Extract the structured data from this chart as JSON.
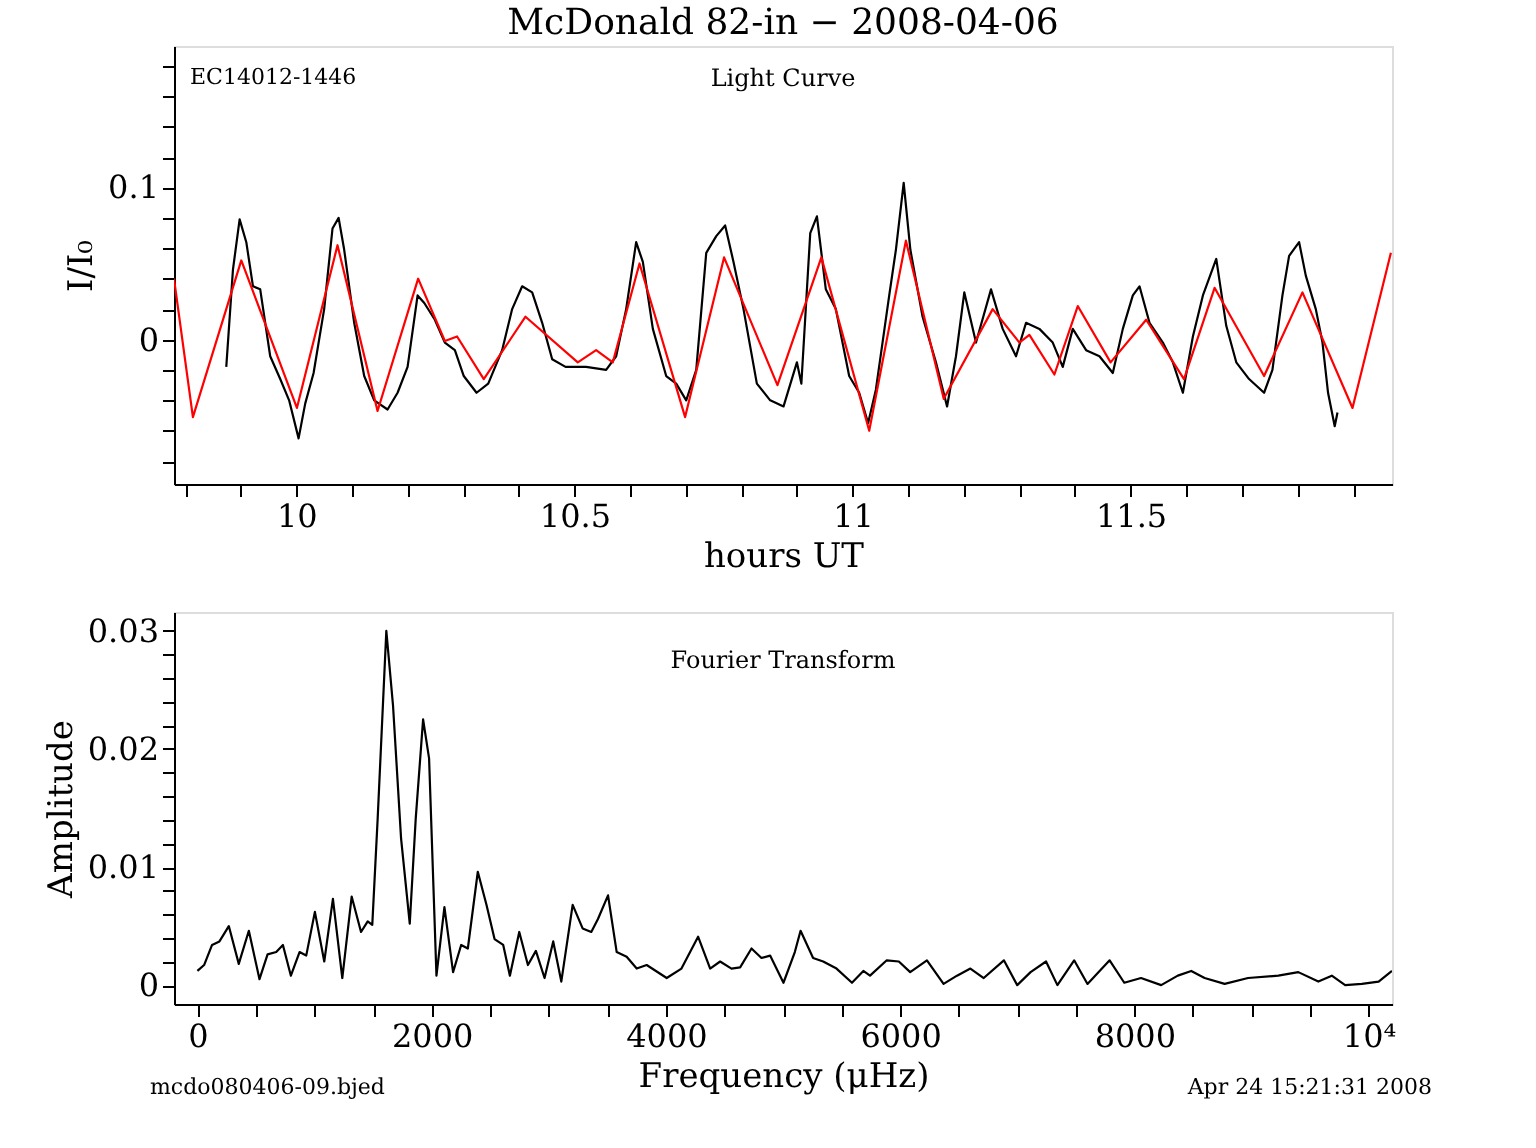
{
  "chart_data": [
    {
      "type": "line",
      "title": "McDonald 82-in − 2008-04-06",
      "xlabel": "hours UT",
      "ylabel": "I/I₀",
      "annotations": [
        "EC14012-1446",
        "Light Curve"
      ],
      "xlim": [
        9.78,
        11.97
      ],
      "ylim": [
        -0.095,
        0.193
      ],
      "xticks": [
        {
          "value": 9.8,
          "label": null
        },
        {
          "value": 9.9,
          "label": null
        },
        10,
        {
          "value": 10.1,
          "label": null
        },
        {
          "value": 10.2,
          "label": null
        },
        {
          "value": 10.3,
          "label": null
        },
        {
          "value": 10.4,
          "label": null
        },
        10.5,
        {
          "value": 10.6,
          "label": null
        },
        {
          "value": 10.7,
          "label": null
        },
        {
          "value": 10.8,
          "label": null
        },
        {
          "value": 10.9,
          "label": null
        },
        11,
        {
          "value": 11.1,
          "label": null
        },
        {
          "value": 11.2,
          "label": null
        },
        {
          "value": 11.3,
          "label": null
        },
        {
          "value": 11.4,
          "label": null
        },
        11.5,
        {
          "value": 11.6,
          "label": null
        },
        {
          "value": 11.7,
          "label": null
        },
        {
          "value": 11.8,
          "label": null
        },
        {
          "value": 11.9,
          "label": null
        }
      ],
      "yticks": [
        {
          "value": -0.08,
          "label": null
        },
        {
          "value": -0.06,
          "label": null
        },
        {
          "value": -0.04,
          "label": null
        },
        {
          "value": -0.02,
          "label": null
        },
        0,
        {
          "value": 0.02,
          "label": null
        },
        {
          "value": 0.04,
          "label": null
        },
        {
          "value": 0.06,
          "label": null
        },
        {
          "value": 0.08,
          "label": null
        },
        0.1,
        {
          "value": 0.12,
          "label": null
        },
        {
          "value": 0.14,
          "label": null
        },
        {
          "value": 0.16,
          "label": null
        },
        {
          "value": 0.18,
          "label": null
        }
      ],
      "series": [
        {
          "color": "#000000",
          "x": [
            9.874,
            9.886,
            9.898,
            9.91,
            9.922,
            9.935,
            9.953,
            9.971,
            9.987,
            10.004,
            10.016,
            10.031,
            10.05,
            10.065,
            10.076,
            10.086,
            10.104,
            10.122,
            10.14,
            10.164,
            10.182,
            10.2,
            10.218,
            10.23,
            10.249,
            10.267,
            10.285,
            10.301,
            10.324,
            10.345,
            10.37,
            10.388,
            10.406,
            10.424,
            10.442,
            10.46,
            10.484,
            10.521,
            10.557,
            10.575,
            10.593,
            10.611,
            10.623,
            10.641,
            10.665,
            10.683,
            10.701,
            10.719,
            10.737,
            10.755,
            10.771,
            10.786,
            10.804,
            10.828,
            10.852,
            10.876,
            10.9,
            10.908,
            10.924,
            10.936,
            10.952,
            10.97,
            10.994,
            11.012,
            11.028,
            11.042,
            11.066,
            11.078,
            11.092,
            11.104,
            11.126,
            11.15,
            11.17,
            11.186,
            11.201,
            11.222,
            11.249,
            11.27,
            11.294,
            11.312,
            11.336,
            11.36,
            11.378,
            11.396,
            11.42,
            11.444,
            11.468,
            11.486,
            11.504,
            11.516,
            11.534,
            11.558,
            11.576,
            11.594,
            11.612,
            11.63,
            11.654,
            11.672,
            11.69,
            11.713,
            11.74,
            11.755,
            11.773,
            11.785,
            11.803,
            11.815,
            11.833,
            11.845,
            11.855,
            11.867,
            11.872
          ],
          "values": [
            -0.018,
            0.046,
            0.079,
            0.064,
            0.035,
            0.033,
            -0.011,
            -0.026,
            -0.04,
            -0.065,
            -0.042,
            -0.022,
            0.02,
            0.073,
            0.08,
            0.059,
            0.011,
            -0.024,
            -0.04,
            -0.046,
            -0.035,
            -0.018,
            0.029,
            0.024,
            0.013,
            -0.002,
            -0.007,
            -0.024,
            -0.035,
            -0.029,
            -0.007,
            0.02,
            0.035,
            0.031,
            0.011,
            -0.013,
            -0.018,
            -0.018,
            -0.02,
            -0.011,
            0.02,
            0.064,
            0.051,
            0.007,
            -0.024,
            -0.029,
            -0.04,
            -0.02,
            0.057,
            0.068,
            0.075,
            0.051,
            0.02,
            -0.029,
            -0.04,
            -0.044,
            -0.015,
            -0.029,
            0.07,
            0.081,
            0.033,
            0.02,
            -0.024,
            -0.035,
            -0.055,
            -0.033,
            0.029,
            0.059,
            0.103,
            0.059,
            0.015,
            -0.015,
            -0.044,
            -0.011,
            0.031,
            -0.002,
            0.033,
            0.007,
            -0.011,
            0.011,
            0.007,
            -0.002,
            -0.018,
            0.007,
            -0.007,
            -0.011,
            -0.022,
            0.007,
            0.029,
            0.035,
            0.011,
            -0.002,
            -0.015,
            -0.035,
            0.002,
            0.029,
            0.053,
            0.009,
            -0.015,
            -0.026,
            -0.035,
            -0.02,
            0.029,
            0.055,
            0.064,
            0.042,
            0.02,
            -0.002,
            -0.035,
            -0.057,
            -0.048
          ]
        },
        {
          "color": "#ff0000",
          "x": [
            9.78,
            9.814,
            9.901,
            10.001,
            10.074,
            10.146,
            10.219,
            10.267,
            10.289,
            10.337,
            10.412,
            10.506,
            10.539,
            10.569,
            10.617,
            10.699,
            10.769,
            10.865,
            10.944,
            11.03,
            11.096,
            11.164,
            11.252,
            11.3,
            11.318,
            11.363,
            11.405,
            11.464,
            11.528,
            11.596,
            11.651,
            11.74,
            11.809,
            11.899,
            11.968
          ],
          "values": [
            0.04,
            -0.051,
            0.052,
            -0.045,
            0.062,
            -0.047,
            0.04,
            -0.001,
            0.002,
            -0.026,
            0.015,
            -0.015,
            -0.007,
            -0.015,
            0.05,
            -0.051,
            0.054,
            -0.03,
            0.054,
            -0.06,
            0.065,
            -0.039,
            0.02,
            -0.002,
            0.003,
            -0.023,
            0.022,
            -0.015,
            0.013,
            -0.026,
            0.034,
            -0.024,
            0.031,
            -0.045,
            0.057
          ]
        }
      ]
    },
    {
      "type": "line",
      "xlabel": "Frequency (μHz)",
      "ylabel": "Amplitude",
      "annotations": [
        "Fourier Transform",
        "mcdo080406-09.bjed",
        "Apr 24 15:21:31 2008"
      ],
      "xlim": [
        -200,
        10200
      ],
      "ylim": [
        -0.0016,
        0.0316
      ],
      "xticks": [
        0,
        {
          "value": 500,
          "label": null
        },
        {
          "value": 1000,
          "label": null
        },
        {
          "value": 1500,
          "label": null
        },
        2000,
        {
          "value": 2500,
          "label": null
        },
        {
          "value": 3000,
          "label": null
        },
        {
          "value": 3500,
          "label": null
        },
        4000,
        {
          "value": 4500,
          "label": null
        },
        {
          "value": 5000,
          "label": null
        },
        {
          "value": 5500,
          "label": null
        },
        6000,
        {
          "value": 6500,
          "label": null
        },
        {
          "value": 7000,
          "label": null
        },
        {
          "value": 7500,
          "label": null
        },
        8000,
        {
          "value": 8500,
          "label": null
        },
        {
          "value": 9000,
          "label": null
        },
        {
          "value": 9500,
          "label": null
        },
        {
          "value": 10000,
          "label": "10⁴"
        }
      ],
      "yticks": [
        0,
        {
          "value": 0.002,
          "label": null
        },
        {
          "value": 0.004,
          "label": null
        },
        {
          "value": 0.006,
          "label": null
        },
        {
          "value": 0.008,
          "label": null
        },
        0.01,
        {
          "value": 0.012,
          "label": null
        },
        {
          "value": 0.014,
          "label": null
        },
        {
          "value": 0.016,
          "label": null
        },
        {
          "value": 0.018,
          "label": null
        },
        0.02,
        {
          "value": 0.022,
          "label": null
        },
        {
          "value": 0.024,
          "label": null
        },
        {
          "value": 0.026,
          "label": null
        },
        {
          "value": 0.028,
          "label": null
        },
        0.03
      ],
      "series": [
        {
          "color": "#000000",
          "x": [
            0,
            57,
            125,
            188,
            268,
            353,
            439,
            530,
            599,
            673,
            730,
            798,
            872,
            929,
            1003,
            1083,
            1157,
            1237,
            1317,
            1397,
            1454,
            1493,
            1539,
            1613,
            1670,
            1739,
            1813,
            1864,
            1927,
            1978,
            2041,
            2109,
            2183,
            2252,
            2309,
            2394,
            2468,
            2537,
            2611,
            2668,
            2748,
            2822,
            2890,
            2964,
            3038,
            3107,
            3204,
            3289,
            3363,
            3420,
            3506,
            3580,
            3665,
            3751,
            3836,
            4007,
            4133,
            4275,
            4378,
            4463,
            4560,
            4634,
            4731,
            4816,
            4890,
            5004,
            5101,
            5150,
            5257,
            5343,
            5457,
            5589,
            5686,
            5743,
            5886,
            5989,
            6086,
            6229,
            6371,
            6486,
            6600,
            6714,
            6886,
            7000,
            7114,
            7246,
            7343,
            7486,
            7600,
            7789,
            7914,
            8057,
            8229,
            8371,
            8486,
            8600,
            8771,
            8971,
            9229,
            9400,
            9571,
            9686,
            9800,
            9943,
            10086,
            10200
          ],
          "values": [
            0.0012,
            0.0017,
            0.0034,
            0.0037,
            0.005,
            0.0018,
            0.0046,
            0.0005,
            0.0026,
            0.0028,
            0.0034,
            0.0008,
            0.0028,
            0.0025,
            0.0062,
            0.002,
            0.0073,
            0.0006,
            0.0075,
            0.0045,
            0.0054,
            0.0051,
            0.0141,
            0.03,
            0.0237,
            0.0124,
            0.0052,
            0.0141,
            0.0225,
            0.0192,
            0.0008,
            0.0066,
            0.0011,
            0.0034,
            0.0031,
            0.0096,
            0.0068,
            0.0039,
            0.0034,
            0.0008,
            0.0045,
            0.0017,
            0.0029,
            0.0006,
            0.0037,
            0.0003,
            0.0068,
            0.0048,
            0.0045,
            0.0056,
            0.0076,
            0.0028,
            0.0024,
            0.0014,
            0.0017,
            0.0006,
            0.0014,
            0.0041,
            0.0014,
            0.002,
            0.0014,
            0.0015,
            0.0031,
            0.0023,
            0.0025,
            0.0002,
            0.0028,
            0.0046,
            0.0023,
            0.002,
            0.0014,
            0.0002,
            0.0012,
            0.0008,
            0.0021,
            0.002,
            0.0011,
            0.0021,
            0.0001,
            0.0008,
            0.0014,
            0.0006,
            0.0021,
            0.0,
            0.0011,
            0.002,
            0.0,
            0.0021,
            0.0001,
            0.0021,
            0.0002,
            0.0006,
            0.0,
            0.0008,
            0.0012,
            0.0006,
            0.0001,
            0.0006,
            0.0008,
            0.0011,
            0.0003,
            0.0008,
            0.0,
            0.0001,
            0.0003,
            0.0012
          ]
        }
      ]
    }
  ]
}
